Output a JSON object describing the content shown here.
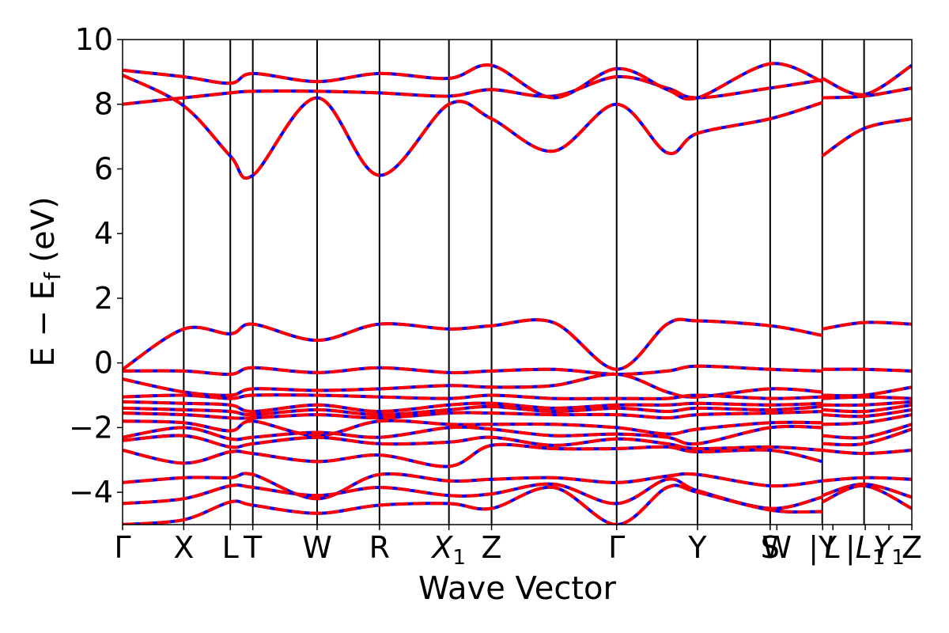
{
  "chart_data": {
    "type": "line",
    "xlabel": "Wave Vector",
    "ylabel_parts": {
      "main": "E − E",
      "sub": "f",
      "unit": " (eV)"
    },
    "ylim": [
      -5,
      10
    ],
    "y_ticks": [
      -4,
      -2,
      0,
      2,
      4,
      6,
      8,
      10
    ],
    "y_tick_labels": [
      "−4",
      "−2",
      "0",
      "2",
      "4",
      "6",
      "8",
      "10"
    ],
    "xlim": [
      0,
      1
    ],
    "grid": false,
    "legend": "none",
    "high_symmetry_points": [
      {
        "label": "Γ",
        "sub": "",
        "italic": false,
        "x": 0.0
      },
      {
        "label": "X",
        "sub": "",
        "italic": false,
        "x": 0.0775
      },
      {
        "label": "L",
        "sub": "",
        "italic": false,
        "x": 0.1365
      },
      {
        "label": "T",
        "sub": "",
        "italic": false,
        "x": 0.165
      },
      {
        "label": "W",
        "sub": "",
        "italic": false,
        "x": 0.2465
      },
      {
        "label": "R",
        "sub": "",
        "italic": false,
        "x": 0.3255
      },
      {
        "label": "X",
        "sub": "1",
        "italic": true,
        "x": 0.4135
      },
      {
        "label": "Z",
        "sub": "",
        "italic": false,
        "x": 0.4675
      },
      {
        "label": "Γ",
        "sub": "",
        "italic": false,
        "x": 0.626
      },
      {
        "label": "Y",
        "sub": "",
        "italic": false,
        "x": 0.7285
      },
      {
        "label": "S",
        "sub": "",
        "italic": false,
        "x": 0.8205
      },
      {
        "label": "W",
        "sub": "",
        "italic": false,
        "x": 0.829
      },
      {
        "label": "|Y",
        "sub": "",
        "italic": false,
        "x": 0.887
      },
      {
        "label": "L",
        "sub": "",
        "italic": true,
        "x": 0.9
      },
      {
        "label": "|L",
        "sub": "1",
        "italic": true,
        "x": 0.941
      },
      {
        "label": "Y",
        "sub": "1",
        "italic": true,
        "x": 0.971
      },
      {
        "label": "Z",
        "sub": "",
        "italic": false,
        "x": 1.0
      }
    ],
    "vertical_lines_x": [
      0.0775,
      0.1365,
      0.165,
      0.2465,
      0.3255,
      0.4135,
      0.4675,
      0.626,
      0.7285,
      0.8205,
      0.8865,
      0.9395
    ],
    "series_styles": [
      {
        "color": "#0000ff",
        "style": "solid"
      },
      {
        "color": "#ff0000",
        "style": "dashed"
      }
    ],
    "bands": [
      {
        "x": [
          0,
          0.0775,
          0.1365,
          0.165,
          0.2465,
          0.3255,
          0.4135,
          0.4675,
          0.546,
          0.626,
          0.69,
          0.7285,
          0.8205,
          0.8865
        ],
        "y": [
          8.0,
          8.2,
          8.35,
          8.4,
          8.4,
          8.35,
          8.25,
          8.45,
          8.25,
          8.85,
          8.5,
          8.2,
          8.5,
          8.75
        ]
      },
      {
        "x": [
          0.8865,
          0.9395,
          1.0
        ],
        "y": [
          8.2,
          8.25,
          8.5
        ]
      },
      {
        "x": [
          0,
          0.0775,
          0.1365,
          0.165,
          0.2465,
          0.3255,
          0.4135,
          0.4675,
          0.546,
          0.626,
          0.69,
          0.7285,
          0.8205,
          0.8865
        ],
        "y": [
          9.05,
          8.85,
          8.65,
          8.95,
          8.7,
          8.95,
          8.8,
          9.2,
          8.2,
          9.1,
          8.45,
          8.2,
          9.25,
          8.7
        ]
      },
      {
        "x": [
          0.8865,
          0.9395,
          1.0
        ],
        "y": [
          8.8,
          8.3,
          9.2
        ]
      },
      {
        "x": [
          0,
          0.0775,
          0.1365,
          0.165,
          0.2465,
          0.3255,
          0.4135,
          0.4675,
          0.546,
          0.626,
          0.69,
          0.7285,
          0.8205,
          0.8865
        ],
        "y": [
          8.9,
          7.95,
          6.4,
          5.8,
          8.2,
          5.8,
          8.0,
          7.55,
          6.55,
          8.0,
          6.5,
          7.1,
          7.55,
          8.05
        ]
      },
      {
        "x": [
          0.8865,
          0.9395,
          1.0
        ],
        "y": [
          6.4,
          7.25,
          7.55
        ]
      },
      {
        "x": [
          0,
          0.0775,
          0.1365,
          0.165,
          0.2465,
          0.3255,
          0.4135,
          0.4675,
          0.546,
          0.626,
          0.69,
          0.7285,
          0.8205,
          0.8865
        ],
        "y": [
          -0.2,
          1.05,
          0.9,
          1.2,
          0.7,
          1.2,
          1.05,
          1.15,
          1.25,
          -0.2,
          1.2,
          1.3,
          1.15,
          0.85
        ]
      },
      {
        "x": [
          0.8865,
          0.9395,
          1.0
        ],
        "y": [
          1.05,
          1.25,
          1.2
        ]
      },
      {
        "x": [
          0,
          0.0775,
          0.1365,
          0.165,
          0.2465,
          0.3255,
          0.4135,
          0.4675,
          0.546,
          0.626,
          0.69,
          0.7285,
          0.8205,
          0.8865
        ],
        "y": [
          -0.25,
          -0.25,
          -0.35,
          -0.15,
          -0.3,
          -0.15,
          -0.3,
          -0.25,
          -0.2,
          -0.35,
          -0.25,
          -0.1,
          -0.2,
          -0.25
        ]
      },
      {
        "x": [
          0.8865,
          0.9395,
          1.0
        ],
        "y": [
          -0.2,
          -0.2,
          -0.25
        ]
      },
      {
        "x": [
          0,
          0.0775,
          0.1365,
          0.165,
          0.2465,
          0.3255,
          0.4135,
          0.4675,
          0.546,
          0.626,
          0.69,
          0.7285,
          0.8205,
          0.8865
        ],
        "y": [
          -0.5,
          -0.9,
          -1.0,
          -0.8,
          -0.85,
          -0.8,
          -0.7,
          -0.75,
          -0.7,
          -0.35,
          -0.9,
          -1.05,
          -0.8,
          -0.9
        ]
      },
      {
        "x": [
          0.8865,
          0.9395,
          1.0
        ],
        "y": [
          -1.0,
          -1.0,
          -0.75
        ]
      },
      {
        "x": [
          0,
          0.0775,
          0.1365,
          0.165,
          0.2465,
          0.3255,
          0.4135,
          0.4675,
          0.546,
          0.626,
          0.69,
          0.7285,
          0.8205,
          0.8865
        ],
        "y": [
          -1.05,
          -1.0,
          -1.1,
          -1.0,
          -1.0,
          -1.05,
          -1.1,
          -1.0,
          -1.1,
          -1.1,
          -1.1,
          -1.0,
          -1.1,
          -1.05
        ]
      },
      {
        "x": [
          0.8865,
          0.9395,
          1.0
        ],
        "y": [
          -1.1,
          -1.05,
          -1.1
        ]
      },
      {
        "x": [
          0,
          0.0775,
          0.1365,
          0.165,
          0.2465,
          0.3255,
          0.4135,
          0.4675,
          0.546,
          0.626,
          0.69,
          0.7285,
          0.8205,
          0.8865
        ],
        "y": [
          -1.2,
          -1.25,
          -1.3,
          -1.5,
          -1.3,
          -1.5,
          -1.3,
          -1.25,
          -1.4,
          -1.3,
          -1.3,
          -1.25,
          -1.3,
          -1.25
        ]
      },
      {
        "x": [
          0.8865,
          0.9395,
          1.0
        ],
        "y": [
          -1.3,
          -1.3,
          -1.2
        ]
      },
      {
        "x": [
          0,
          0.0775,
          0.1365,
          0.165,
          0.2465,
          0.3255,
          0.4135,
          0.4675,
          0.546,
          0.626,
          0.69,
          0.7285,
          0.8205,
          0.8865
        ],
        "y": [
          -1.4,
          -1.45,
          -1.5,
          -1.6,
          -1.45,
          -1.6,
          -1.45,
          -1.35,
          -1.5,
          -1.4,
          -1.5,
          -1.4,
          -1.45,
          -1.35
        ]
      },
      {
        "x": [
          0.8865,
          0.9395,
          1.0
        ],
        "y": [
          -1.45,
          -1.5,
          -1.3
        ]
      },
      {
        "x": [
          0,
          0.0775,
          0.1365,
          0.165,
          0.2465,
          0.3255,
          0.4135,
          0.4675,
          0.546,
          0.626,
          0.69,
          0.7285,
          0.8205,
          0.8865
        ],
        "y": [
          -1.55,
          -1.6,
          -1.7,
          -1.7,
          -1.6,
          -1.7,
          -1.55,
          -1.55,
          -1.6,
          -1.6,
          -1.7,
          -1.6,
          -1.55,
          -1.5
        ]
      },
      {
        "x": [
          0.8865,
          0.9395,
          1.0
        ],
        "y": [
          -1.6,
          -1.65,
          -1.45
        ]
      },
      {
        "x": [
          0,
          0.0775,
          0.1365,
          0.165,
          0.2465,
          0.3255,
          0.4135,
          0.4675,
          0.546,
          0.626,
          0.69,
          0.7285,
          0.8205,
          0.8865
        ],
        "y": [
          -1.8,
          -1.85,
          -2.1,
          -1.8,
          -2.25,
          -1.8,
          -1.9,
          -1.9,
          -1.9,
          -2.0,
          -2.2,
          -2.05,
          -1.85,
          -1.85
        ]
      },
      {
        "x": [
          0.8865,
          0.9395,
          1.0
        ],
        "y": [
          -1.9,
          -1.85,
          -1.6
        ]
      },
      {
        "x": [
          0,
          0.0775,
          0.1365,
          0.165,
          0.2465,
          0.3255,
          0.4135,
          0.4675,
          0.546,
          0.626,
          0.69,
          0.7285,
          0.8205,
          0.8865
        ],
        "y": [
          -2.3,
          -2.0,
          -2.35,
          -2.3,
          -2.15,
          -2.3,
          -2.0,
          -2.05,
          -2.25,
          -2.2,
          -2.3,
          -2.5,
          -2.0,
          -2.0
        ]
      },
      {
        "x": [
          0.8865,
          0.9395,
          1.0
        ],
        "y": [
          -2.25,
          -2.3,
          -1.9
        ]
      },
      {
        "x": [
          0,
          0.0775,
          0.1365,
          0.165,
          0.2465,
          0.3255,
          0.4135,
          0.4675,
          0.546,
          0.626,
          0.69,
          0.7285,
          0.8205,
          0.8865
        ],
        "y": [
          -2.4,
          -2.25,
          -2.6,
          -2.5,
          -2.3,
          -2.5,
          -2.45,
          -2.3,
          -2.55,
          -2.35,
          -2.5,
          -2.65,
          -2.6,
          -2.7
        ]
      },
      {
        "x": [
          0.8865,
          0.9395,
          1.0
        ],
        "y": [
          -2.5,
          -2.5,
          -2.05
        ]
      },
      {
        "x": [
          0,
          0.0775,
          0.1365,
          0.165,
          0.2465,
          0.3255,
          0.4135,
          0.4675,
          0.546,
          0.626,
          0.69,
          0.7285,
          0.8205,
          0.8865
        ],
        "y": [
          -2.7,
          -3.1,
          -2.75,
          -2.8,
          -3.05,
          -2.85,
          -3.2,
          -2.55,
          -2.65,
          -2.65,
          -2.6,
          -2.75,
          -2.7,
          -3.05
        ]
      },
      {
        "x": [
          0.8865,
          0.9395,
          1.0
        ],
        "y": [
          -2.7,
          -2.8,
          -2.7
        ]
      },
      {
        "x": [
          0,
          0.0775,
          0.1365,
          0.165,
          0.2465,
          0.3255,
          0.4135,
          0.4675,
          0.546,
          0.626,
          0.69,
          0.7285,
          0.8205,
          0.8865
        ],
        "y": [
          -3.7,
          -3.55,
          -3.55,
          -3.45,
          -4.2,
          -3.45,
          -3.65,
          -3.6,
          -3.55,
          -3.7,
          -3.5,
          -3.45,
          -3.8,
          -3.65
        ]
      },
      {
        "x": [
          0.8865,
          0.9395,
          1.0
        ],
        "y": [
          -3.65,
          -3.55,
          -3.6
        ]
      },
      {
        "x": [
          0,
          0.0775,
          0.1365,
          0.165,
          0.2465,
          0.3255,
          0.4135,
          0.4675,
          0.546,
          0.626,
          0.69,
          0.7285,
          0.8205,
          0.8865
        ],
        "y": [
          -4.35,
          -4.2,
          -3.8,
          -3.85,
          -4.1,
          -3.85,
          -4.1,
          -4.05,
          -3.75,
          -4.35,
          -3.6,
          -3.95,
          -4.5,
          -4.15
        ]
      },
      {
        "x": [
          0.8865,
          0.9395,
          1.0
        ],
        "y": [
          -4.1,
          -3.75,
          -4.15
        ]
      },
      {
        "x": [
          0,
          0.0775,
          0.1365,
          0.165,
          0.2465,
          0.3255,
          0.4135,
          0.4675,
          0.546,
          0.626,
          0.69,
          0.7285,
          0.8205,
          0.8865
        ],
        "y": [
          -5.0,
          -4.85,
          -4.3,
          -4.4,
          -4.65,
          -4.4,
          -4.35,
          -4.5,
          -3.85,
          -5.0,
          -3.85,
          -4.0,
          -4.55,
          -4.6
        ]
      },
      {
        "x": [
          0.8865,
          0.9395,
          1.0
        ],
        "y": [
          -4.3,
          -3.8,
          -4.5
        ]
      }
    ]
  }
}
